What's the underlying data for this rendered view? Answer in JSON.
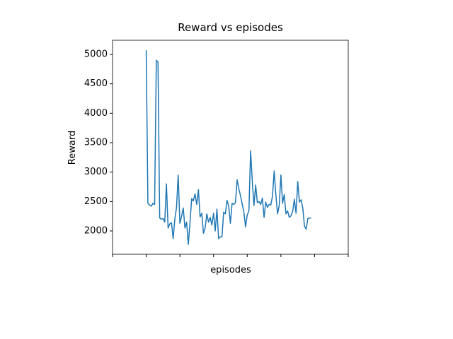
{
  "chart_data": {
    "type": "line",
    "title": "Reward vs episodes",
    "x_label": "episodes",
    "y_label": "Reward",
    "x": [
      0,
      1,
      2,
      3,
      4,
      5,
      6,
      7,
      8,
      9,
      10,
      11,
      12,
      13,
      14,
      15,
      16,
      17,
      18,
      19,
      20,
      21,
      22,
      23,
      24,
      25,
      26,
      27,
      28,
      29,
      30,
      31,
      32,
      33,
      34,
      35,
      36,
      37,
      38,
      39,
      40,
      41,
      42,
      43,
      44,
      45,
      46,
      47,
      48,
      49,
      50,
      51,
      52,
      53,
      54,
      55,
      56,
      57,
      58,
      59,
      60,
      61,
      62,
      63,
      64,
      65,
      66,
      67,
      68,
      69,
      70,
      71,
      72,
      73,
      74,
      75,
      76,
      77,
      78,
      79,
      80,
      81,
      82,
      83,
      84,
      85,
      86,
      87,
      88,
      89,
      90,
      91,
      92,
      93,
      94,
      95,
      96,
      97,
      98
    ],
    "series": [
      {
        "name": "Reward",
        "color": "#1f77b4",
        "values": [
          5070,
          2470,
          2440,
          2420,
          2470,
          2450,
          4900,
          4870,
          2220,
          2200,
          2210,
          2150,
          2800,
          2050,
          2120,
          2140,
          1870,
          2200,
          2400,
          2950,
          2130,
          2250,
          2390,
          2050,
          2150,
          1770,
          2140,
          2550,
          2510,
          2630,
          2450,
          2700,
          2240,
          2300,
          1960,
          2050,
          2290,
          2150,
          2230,
          2100,
          2300,
          2000,
          2370,
          1870,
          1900,
          1900,
          2320,
          2290,
          2520,
          2420,
          2130,
          2470,
          2450,
          2480,
          2870,
          2720,
          2600,
          2460,
          2320,
          2070,
          2270,
          2340,
          3360,
          2850,
          2430,
          2780,
          2480,
          2500,
          2450,
          2560,
          2230,
          2490,
          2400,
          2450,
          2440,
          2590,
          3020,
          2620,
          2290,
          2430,
          2950,
          2470,
          2620,
          2290,
          2340,
          2230,
          2260,
          2330,
          2540,
          2300,
          2840,
          2490,
          2530,
          2390,
          2080,
          2030,
          2210,
          2220,
          2220
        ]
      }
    ],
    "xlim": [
      -20,
      120
    ],
    "xticks": [
      -20,
      0,
      20,
      40,
      60,
      80,
      100,
      120
    ],
    "ylim": [
      1604,
      5240
    ],
    "yticks": [
      2000,
      2500,
      3000,
      3500,
      4000,
      4500,
      5000
    ]
  }
}
